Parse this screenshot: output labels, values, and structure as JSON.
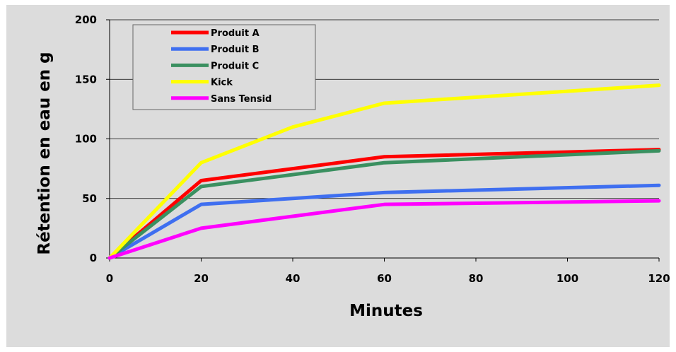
{
  "chart_data": {
    "type": "line",
    "xlabel": "Minutes",
    "ylabel": "Rétention en eau en g",
    "xlim": [
      0,
      120
    ],
    "ylim": [
      0,
      200
    ],
    "xticks": [
      0,
      20,
      40,
      60,
      80,
      100,
      120
    ],
    "yticks": [
      0,
      50,
      100,
      150,
      200
    ],
    "grid": "horizontal",
    "legend_position": "top-left",
    "series": [
      {
        "name": "Produit A",
        "color": "#ff0000",
        "x": [
          0,
          20,
          60,
          120
        ],
        "values": [
          0,
          65,
          85,
          91
        ]
      },
      {
        "name": "Produit B",
        "color": "#3f6ff0",
        "x": [
          0,
          20,
          60,
          120
        ],
        "values": [
          0,
          45,
          55,
          61
        ]
      },
      {
        "name": "Produit C",
        "color": "#3a9060",
        "x": [
          0,
          20,
          60,
          120
        ],
        "values": [
          0,
          60,
          80,
          90
        ]
      },
      {
        "name": "Kick",
        "color": "#ffff00",
        "x": [
          0,
          20,
          40,
          60,
          120
        ],
        "values": [
          0,
          80,
          110,
          130,
          145
        ]
      },
      {
        "name": "Sans Tensid",
        "color": "#ff00ff",
        "x": [
          0,
          20,
          60,
          120
        ],
        "values": [
          0,
          25,
          45,
          48
        ]
      }
    ]
  }
}
